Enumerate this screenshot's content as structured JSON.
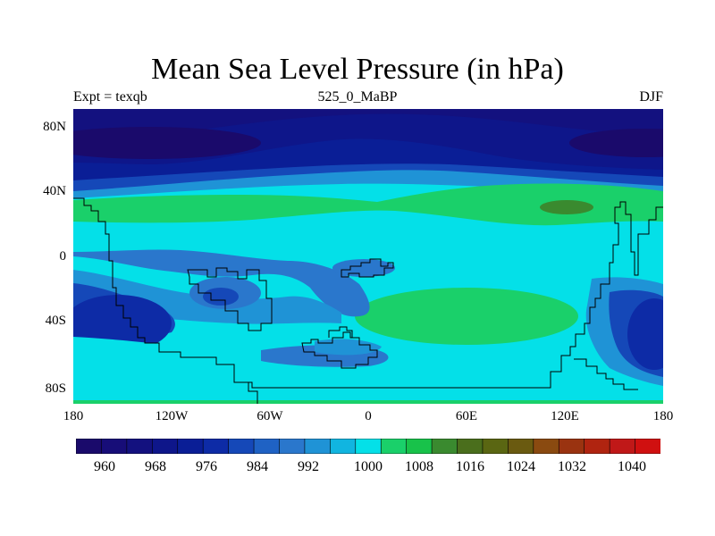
{
  "title": "Mean Sea Level Pressure (in hPa)",
  "subtitle_left": "Expt = texqb",
  "subtitle_center": "525_0_MaBP",
  "subtitle_right": "DJF",
  "lat_labels": [
    "80N",
    "40N",
    "0",
    "40S",
    "80S"
  ],
  "lon_labels": [
    "180",
    "120W",
    "60W",
    "0",
    "60E",
    "120E",
    "180"
  ],
  "colorbar": {
    "labels": [
      "960",
      "968",
      "976",
      "984",
      "992",
      "1000",
      "1008",
      "1016",
      "1024",
      "1032",
      "1040"
    ],
    "colors": [
      "#1a0a6b",
      "#170d78",
      "#13117f",
      "#0e168a",
      "#0a1e96",
      "#0d2ba6",
      "#1548b8",
      "#1f62c4",
      "#2a77cc",
      "#1f93d6",
      "#11b5e0",
      "#04e0e8",
      "#1ad06a",
      "#18c24a",
      "#3a8a2f",
      "#4a6e1c",
      "#5a6612",
      "#6a5a10",
      "#8a4a10",
      "#9a3310",
      "#b02410",
      "#c01818",
      "#d01010"
    ]
  }
}
